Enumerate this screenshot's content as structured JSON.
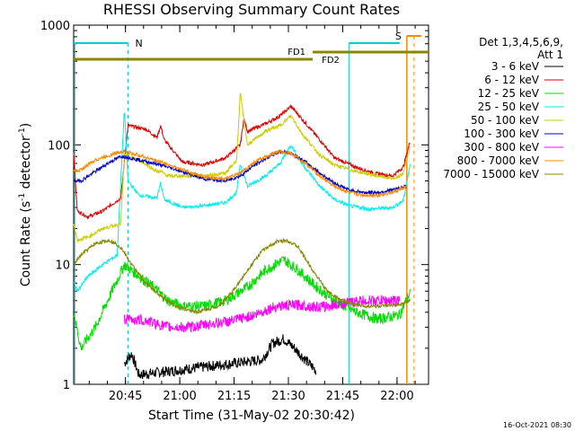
{
  "chart_data": {
    "type": "line",
    "title": "RHESSI Observing Summary Count Rates",
    "xlabel": "Start Time (31-May-02 20:30:42)",
    "ylabel_main": "Count Rate (s",
    "ylabel_sup1": "-1",
    "ylabel_mid": " detector",
    "ylabel_sup2": "-1",
    "ylabel_end": ")",
    "yscale": "log",
    "ylim": [
      1,
      1000
    ],
    "xlim_minutes": [
      0,
      98
    ],
    "x_ticks": [
      {
        "minute": 14.3,
        "label": "20:45"
      },
      {
        "minute": 29.3,
        "label": "21:00"
      },
      {
        "minute": 44.3,
        "label": "21:15"
      },
      {
        "minute": 59.3,
        "label": "21:30"
      },
      {
        "minute": 74.3,
        "label": "21:45"
      },
      {
        "minute": 89.3,
        "label": "22:00"
      }
    ],
    "y_ticks": [
      {
        "value": 1,
        "label": "1"
      },
      {
        "value": 10,
        "label": "10"
      },
      {
        "value": 100,
        "label": "100"
      },
      {
        "value": 1000,
        "label": "1000"
      }
    ],
    "legend_header": [
      "Det 1,3,4,5,6,9,",
      "Att 1"
    ],
    "legend_position": "right",
    "series": [
      {
        "name": "3 - 6 keV",
        "color": "#000000",
        "points": [
          [
            14,
            1.5
          ],
          [
            16,
            1.8
          ],
          [
            18,
            1.2
          ],
          [
            52,
            1.6
          ],
          [
            55,
            2.2
          ],
          [
            58,
            2.4
          ],
          [
            61,
            2.0
          ],
          [
            64,
            1.6
          ],
          [
            67,
            1.3
          ]
        ]
      },
      {
        "name": "6 - 12 keV",
        "color": "#dd0000",
        "points": [
          [
            0,
            85
          ],
          [
            1,
            28
          ],
          [
            4,
            25
          ],
          [
            8,
            28
          ],
          [
            13,
            36
          ],
          [
            15,
            145
          ],
          [
            20,
            135
          ],
          [
            23,
            115
          ],
          [
            24,
            145
          ],
          [
            25,
            110
          ],
          [
            30,
            72
          ],
          [
            36,
            68
          ],
          [
            42,
            78
          ],
          [
            46,
            100
          ],
          [
            47,
            165
          ],
          [
            48,
            130
          ],
          [
            53,
            150
          ],
          [
            57,
            175
          ],
          [
            60,
            210
          ],
          [
            63,
            165
          ],
          [
            68,
            110
          ],
          [
            72,
            78
          ],
          [
            78,
            65
          ],
          [
            83,
            58
          ],
          [
            88,
            55
          ],
          [
            91,
            65
          ],
          [
            93,
            110
          ]
        ]
      },
      {
        "name": "12 - 25 keV",
        "color": "#00dd00",
        "points": [
          [
            0,
            4
          ],
          [
            2,
            2
          ],
          [
            6,
            3
          ],
          [
            10,
            5.5
          ],
          [
            14,
            10
          ],
          [
            18,
            8
          ],
          [
            22,
            6.5
          ],
          [
            26,
            5
          ],
          [
            30,
            4.5
          ],
          [
            36,
            4.5
          ],
          [
            42,
            5
          ],
          [
            48,
            6.5
          ],
          [
            53,
            9
          ],
          [
            58,
            11
          ],
          [
            62,
            9
          ],
          [
            67,
            6.5
          ],
          [
            72,
            5
          ],
          [
            78,
            4
          ],
          [
            84,
            3.5
          ],
          [
            90,
            3.8
          ],
          [
            93,
            6
          ]
        ]
      },
      {
        "name": "25 - 50 keV",
        "color": "#00eeee",
        "points": [
          [
            0,
            7
          ],
          [
            1,
            6
          ],
          [
            4,
            8
          ],
          [
            8,
            10
          ],
          [
            12,
            12
          ],
          [
            14,
            200
          ],
          [
            15,
            50
          ],
          [
            18,
            38
          ],
          [
            23,
            36
          ],
          [
            24,
            48
          ],
          [
            25,
            35
          ],
          [
            30,
            30
          ],
          [
            36,
            31
          ],
          [
            42,
            33
          ],
          [
            45,
            40
          ],
          [
            46,
            70
          ],
          [
            48,
            45
          ],
          [
            53,
            55
          ],
          [
            57,
            70
          ],
          [
            60,
            100
          ],
          [
            63,
            70
          ],
          [
            68,
            45
          ],
          [
            72,
            35
          ],
          [
            76,
            31
          ],
          [
            82,
            29
          ],
          [
            88,
            30
          ],
          [
            91,
            34
          ],
          [
            93,
            70
          ]
        ]
      },
      {
        "name": "50 - 100 keV",
        "color": "#cccc00",
        "points": [
          [
            0,
            22
          ],
          [
            1,
            16
          ],
          [
            4,
            17
          ],
          [
            8,
            20
          ],
          [
            13,
            22
          ],
          [
            14,
            82
          ],
          [
            18,
            75
          ],
          [
            23,
            60
          ],
          [
            24,
            60
          ],
          [
            26,
            55
          ],
          [
            30,
            55
          ],
          [
            36,
            55
          ],
          [
            42,
            58
          ],
          [
            45,
            75
          ],
          [
            46,
            270
          ],
          [
            48,
            100
          ],
          [
            53,
            130
          ],
          [
            57,
            145
          ],
          [
            60,
            175
          ],
          [
            63,
            125
          ],
          [
            68,
            82
          ],
          [
            72,
            68
          ],
          [
            78,
            60
          ],
          [
            84,
            55
          ],
          [
            89,
            52
          ],
          [
            91,
            58
          ],
          [
            93,
            100
          ]
        ]
      },
      {
        "name": "100 - 300 keV",
        "color": "#0000cc",
        "points": [
          [
            0,
            50
          ],
          [
            2,
            50
          ],
          [
            6,
            60
          ],
          [
            10,
            72
          ],
          [
            13,
            80
          ],
          [
            14,
            80
          ],
          [
            18,
            75
          ],
          [
            24,
            68
          ],
          [
            30,
            60
          ],
          [
            36,
            52
          ],
          [
            42,
            50
          ],
          [
            46,
            55
          ],
          [
            50,
            68
          ],
          [
            54,
            80
          ],
          [
            57,
            88
          ],
          [
            60,
            85
          ],
          [
            64,
            72
          ],
          [
            68,
            58
          ],
          [
            72,
            48
          ],
          [
            76,
            42
          ],
          [
            80,
            40
          ],
          [
            84,
            40
          ],
          [
            88,
            42
          ],
          [
            92,
            45
          ]
        ]
      },
      {
        "name": "300 - 800 keV",
        "color": "#ff00ff",
        "points": [
          [
            14,
            3.5
          ],
          [
            20,
            3.4
          ],
          [
            26,
            3
          ],
          [
            32,
            3
          ],
          [
            38,
            3.2
          ],
          [
            44,
            3.4
          ],
          [
            50,
            3.8
          ],
          [
            56,
            4.5
          ],
          [
            62,
            4.6
          ],
          [
            68,
            4.4
          ],
          [
            74,
            4.7
          ],
          [
            80,
            5
          ],
          [
            85,
            5
          ],
          [
            90,
            5
          ]
        ]
      },
      {
        "name": "800 - 7000 keV",
        "color": "#ff8800",
        "points": [
          [
            0,
            60
          ],
          [
            2,
            62
          ],
          [
            6,
            75
          ],
          [
            10,
            82
          ],
          [
            13,
            88
          ],
          [
            14,
            88
          ],
          [
            18,
            82
          ],
          [
            24,
            72
          ],
          [
            30,
            62
          ],
          [
            36,
            54
          ],
          [
            42,
            52
          ],
          [
            46,
            58
          ],
          [
            50,
            72
          ],
          [
            54,
            82
          ],
          [
            57,
            88
          ],
          [
            60,
            85
          ],
          [
            64,
            70
          ],
          [
            68,
            55
          ],
          [
            72,
            45
          ],
          [
            76,
            40
          ],
          [
            80,
            38
          ],
          [
            84,
            38
          ],
          [
            88,
            40
          ],
          [
            92,
            45
          ]
        ]
      },
      {
        "name": "7000 - 15000 keV",
        "color": "#888800",
        "points": [
          [
            0,
            10
          ],
          [
            2,
            12
          ],
          [
            6,
            15
          ],
          [
            10,
            16
          ],
          [
            13,
            14
          ],
          [
            16,
            10
          ],
          [
            20,
            7
          ],
          [
            24,
            5.5
          ],
          [
            28,
            4.5
          ],
          [
            34,
            4
          ],
          [
            40,
            4.5
          ],
          [
            44,
            6
          ],
          [
            48,
            9
          ],
          [
            52,
            13
          ],
          [
            56,
            15.5
          ],
          [
            59,
            16
          ],
          [
            62,
            14
          ],
          [
            66,
            9
          ],
          [
            70,
            6
          ],
          [
            74,
            5
          ],
          [
            80,
            4.5
          ],
          [
            86,
            4.5
          ],
          [
            90,
            4.6
          ],
          [
            93,
            5
          ]
        ]
      }
    ],
    "annotations": [
      {
        "text": "N",
        "color": "#00cccc",
        "minute": 15
      },
      {
        "text": "S",
        "color": "#ff8800",
        "minute": 92
      },
      {
        "text": "FD1",
        "color": "#888800",
        "minute": 66
      },
      {
        "text": "FD2",
        "color": "#888800",
        "minute": 69
      }
    ],
    "footer_date": "16-Oct-2021 08:30"
  }
}
